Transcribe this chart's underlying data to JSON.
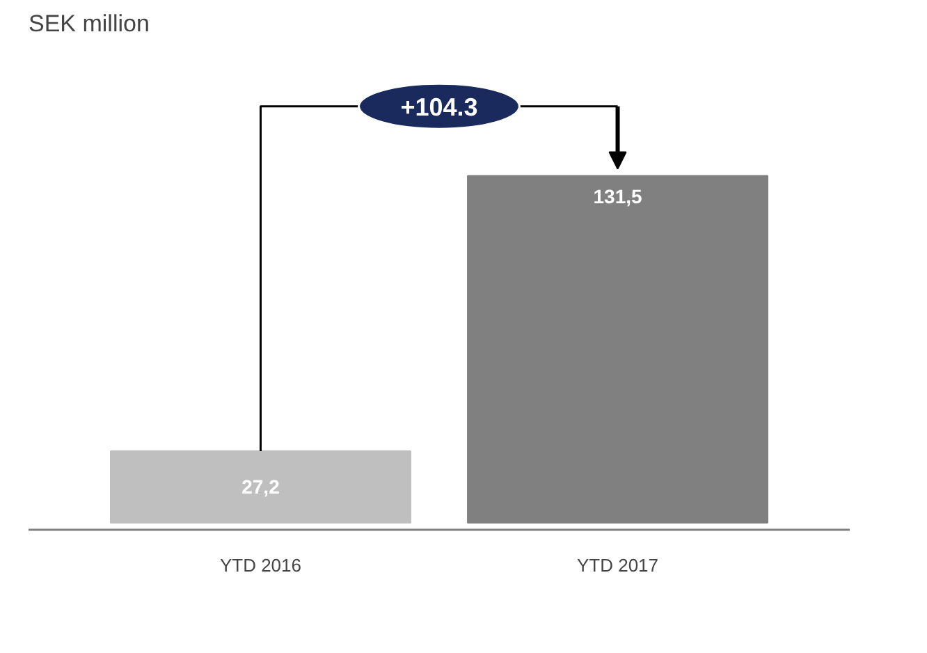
{
  "chart_data": {
    "type": "bar",
    "title": "SEK million",
    "categories": [
      "YTD 2016",
      "YTD 2017"
    ],
    "values": [
      27.2,
      131.5
    ],
    "colors": [
      "#bfbfbf",
      "#808080"
    ],
    "value_labels": [
      "27,2",
      "131,5"
    ],
    "annotations": [
      "+104.3"
    ]
  }
}
